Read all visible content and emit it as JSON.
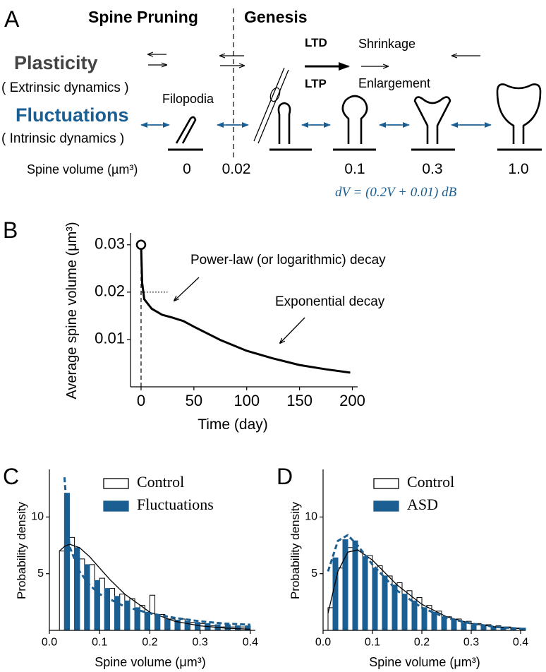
{
  "panel_a": {
    "panel": "A",
    "spine_pruning": "Spine Pruning",
    "genesis": "Genesis",
    "plasticity": "Plasticity",
    "extrinsic": "( Extrinsic dynamics )",
    "fluctuations": "Fluctuations",
    "intrinsic": "( Intrinsic dynamics )",
    "filopodia": "Filopodia",
    "ltd": "LTD",
    "ltp": "LTP",
    "shrinkage": "Shrinkage",
    "enlargement": "Enlargement",
    "volume_label": "Spine volume (µm³)",
    "volumes": [
      "0",
      "0.02",
      "0.1",
      "0.3",
      "1.0"
    ],
    "equation": "dV = (0.2V + 0.01) dB"
  },
  "chart_data": [
    {
      "type": "line",
      "panel": "B",
      "xlabel": "Time (day)",
      "ylabel": "Average spine volume (μm³)",
      "annotations": [
        "Power-law (or logarithmic) decay",
        "Exponential decay"
      ],
      "x": [
        0,
        1,
        3,
        10,
        20,
        30,
        40,
        50,
        75,
        100,
        125,
        150,
        175,
        198
      ],
      "series": [
        {
          "color": "#000000",
          "values": [
            0.03,
            0.022,
            0.0185,
            0.0165,
            0.0152,
            0.0146,
            0.0139,
            0.0127,
            0.0099,
            0.0076,
            0.006,
            0.0046,
            0.0037,
            0.003
          ]
        }
      ],
      "start_marker": true,
      "vline": 0,
      "hline": {
        "y": 0.02,
        "xmax": 25
      },
      "xlim": [
        -10,
        205
      ],
      "xticks": [
        0,
        50,
        100,
        150,
        200
      ],
      "ylim": [
        0,
        0.0325
      ],
      "yticks": [
        0.01,
        0.02,
        0.03
      ]
    },
    {
      "type": "histogram",
      "panel": "C",
      "xlabel": "Spine volume (μm³)",
      "ylabel": "Probability density",
      "bins": [
        0.02,
        0.04,
        0.06,
        0.08,
        0.1,
        0.12,
        0.14,
        0.16,
        0.18,
        0.2,
        0.22,
        0.24,
        0.26,
        0.28,
        0.3,
        0.32,
        0.34,
        0.36,
        0.38,
        0.4
      ],
      "series": [
        {
          "name": "Control",
          "color": "#ffffff",
          "edgecolor": "#000000",
          "values": [
            7.0,
            8.2,
            6.3,
            5.8,
            4.6,
            3.7,
            3.2,
            2.8,
            2.2,
            3.1,
            1.4,
            1.0,
            1.0,
            0.7,
            0.6,
            0.4,
            0.3,
            0.3,
            0.3
          ]
        },
        {
          "name": "Fluctuations",
          "color": "#1b5e91",
          "edgecolor": "#1b5e91",
          "values": [
            12.1,
            7.3,
            5.8,
            4.4,
            3.7,
            3.0,
            2.6,
            2.0,
            1.6,
            1.3,
            1.0,
            0.9,
            0.8,
            0.7,
            0.6,
            0.5,
            0.5,
            0.4,
            0.4
          ]
        }
      ],
      "fits": [
        {
          "color": "#000000",
          "dashed": false,
          "x": [
            0.02,
            0.03,
            0.04,
            0.06,
            0.08,
            0.1,
            0.12,
            0.15,
            0.2,
            0.25,
            0.3,
            0.35,
            0.4
          ],
          "y": [
            7.0,
            7.4,
            7.6,
            7.3,
            6.5,
            5.5,
            4.5,
            3.2,
            1.6,
            0.8,
            0.4,
            0.2,
            0.1
          ]
        },
        {
          "color": "#1b5e91",
          "dashed": true,
          "x": [
            0.03,
            0.04,
            0.06,
            0.08,
            0.1,
            0.15,
            0.2,
            0.25,
            0.3,
            0.35,
            0.4
          ],
          "y": [
            13.5,
            7.4,
            5.2,
            4.0,
            3.2,
            2.1,
            1.5,
            1.1,
            0.8,
            0.6,
            0.5
          ]
        }
      ],
      "legend": "upper right",
      "xlim": [
        0,
        0.41
      ],
      "xticks": [
        {
          "value": 0,
          "label": "0.0"
        },
        0.1,
        0.2,
        0.3,
        0.4
      ],
      "ylim": [
        0,
        14.2
      ],
      "yticks": [
        5,
        10
      ]
    },
    {
      "type": "histogram",
      "panel": "D",
      "xlabel": "Spine volume (μm³)",
      "ylabel": "Probability density",
      "bins": [
        0.01,
        0.03,
        0.05,
        0.07,
        0.09,
        0.11,
        0.13,
        0.15,
        0.17,
        0.19,
        0.21,
        0.23,
        0.25,
        0.27,
        0.29,
        0.31,
        0.33,
        0.35,
        0.37,
        0.39,
        0.41
      ],
      "series": [
        {
          "name": "Control",
          "color": "#ffffff",
          "edgecolor": "#000000",
          "values": [
            2.0,
            5.5,
            7.3,
            7.0,
            6.6,
            5.7,
            4.8,
            4.2,
            3.5,
            2.9,
            2.2,
            1.7,
            1.2,
            1.0,
            0.8,
            0.6,
            0.5,
            0.4,
            0.3,
            0.2
          ]
        },
        {
          "name": "ASD",
          "color": "#1b5e91",
          "edgecolor": "#1b5e91",
          "values": [
            6.4,
            8.0,
            7.9,
            6.5,
            5.5,
            4.8,
            4.0,
            3.2,
            2.6,
            2.0,
            1.6,
            1.2,
            0.9,
            0.7,
            0.5,
            0.4,
            0.3,
            0.3,
            0.2,
            0.2
          ]
        }
      ],
      "fits": [
        {
          "color": "#000000",
          "dashed": false,
          "x": [
            0.01,
            0.03,
            0.05,
            0.07,
            0.1,
            0.15,
            0.2,
            0.25,
            0.3,
            0.35,
            0.4
          ],
          "y": [
            1.5,
            5.2,
            6.9,
            7.1,
            6.2,
            4.0,
            2.3,
            1.2,
            0.6,
            0.3,
            0.15
          ]
        },
        {
          "color": "#1b5e91",
          "dashed": true,
          "x": [
            0.01,
            0.03,
            0.05,
            0.07,
            0.1,
            0.15,
            0.2,
            0.25,
            0.3,
            0.35,
            0.4
          ],
          "y": [
            5.2,
            7.9,
            8.4,
            7.5,
            5.8,
            3.5,
            2.0,
            1.1,
            0.6,
            0.3,
            0.15
          ]
        }
      ],
      "legend": "upper right",
      "xlim": [
        0,
        0.41
      ],
      "xticks": [
        {
          "value": 0,
          "label": "0.0"
        },
        0.1,
        0.2,
        0.3,
        0.4
      ],
      "ylim": [
        0,
        14.2
      ],
      "yticks": [
        5,
        10
      ]
    }
  ]
}
